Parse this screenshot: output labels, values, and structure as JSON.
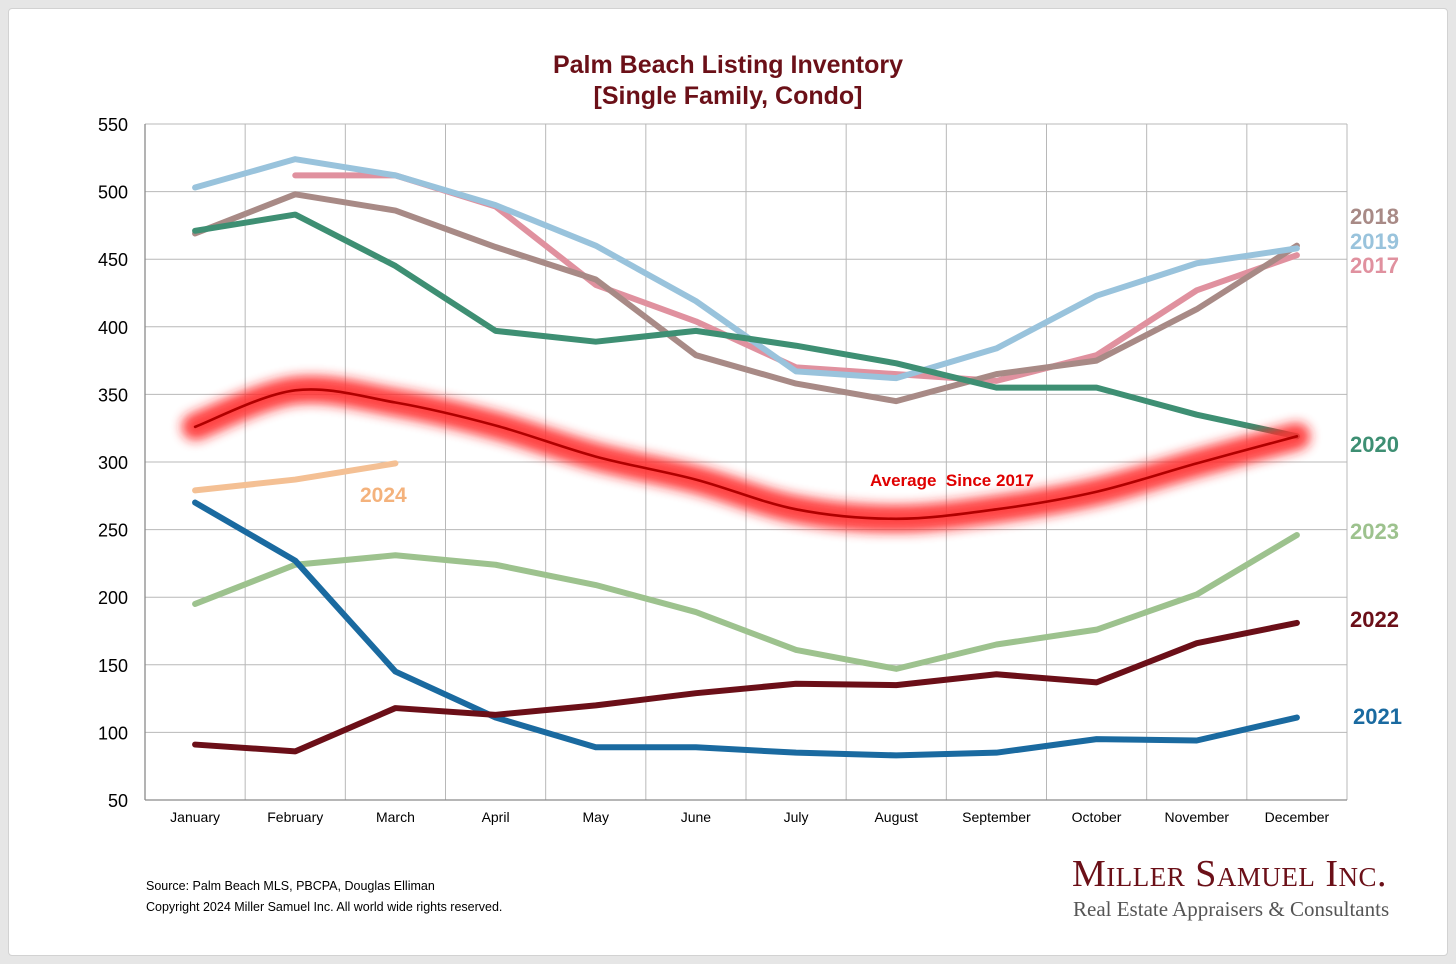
{
  "title_line1": "Palm Beach Listing Inventory",
  "title_line2": "[Single Family, Condo]",
  "source": "Source: Palm Beach MLS, PBCPA, Douglas Elliman",
  "copyright": "Copyright 2024 Miller Samuel Inc.  All world wide rights reserved.",
  "logo": {
    "name": "Miller Samuel Inc.",
    "tagline": "Real Estate Appraisers & Consultants"
  },
  "chart_data": {
    "type": "line",
    "title": "Palm Beach Listing Inventory [Single Family, Condo]",
    "categories": [
      "January",
      "February",
      "March",
      "April",
      "May",
      "June",
      "July",
      "August",
      "September",
      "October",
      "November",
      "December"
    ],
    "ylim": [
      50,
      550
    ],
    "yticks": [
      50,
      100,
      150,
      200,
      250,
      300,
      350,
      400,
      450,
      500,
      550
    ],
    "grid": true,
    "legend": "right",
    "series": [
      {
        "name": "2017",
        "color": "#e0919f",
        "label_color": "#e0919f",
        "values": [
          null,
          512,
          512,
          489,
          431,
          404,
          370,
          365,
          360,
          379,
          427,
          453
        ]
      },
      {
        "name": "2018",
        "color": "#a88a86",
        "label_color": "#a88a86",
        "values": [
          469,
          498,
          486,
          459,
          435,
          379,
          358,
          345,
          365,
          375,
          413,
          460
        ]
      },
      {
        "name": "2019",
        "color": "#99c3dc",
        "label_color": "#99c3dc",
        "values": [
          503,
          524,
          512,
          490,
          460,
          419,
          367,
          362,
          384,
          423,
          447,
          458
        ]
      },
      {
        "name": "2020",
        "color": "#3e8f73",
        "label_color": "#3e8f73",
        "values": [
          471,
          483,
          445,
          397,
          389,
          397,
          386,
          373,
          355,
          355,
          335,
          319
        ]
      },
      {
        "name": "2021",
        "color": "#1a6aa0",
        "label_color": "#1a6aa0",
        "values": [
          270,
          227,
          145,
          111,
          89,
          89,
          85,
          83,
          85,
          95,
          94,
          111
        ]
      },
      {
        "name": "2022",
        "color": "#6b0f18",
        "label_color": "#6b0f18",
        "values": [
          91,
          86,
          118,
          113,
          120,
          129,
          136,
          135,
          143,
          137,
          166,
          181
        ]
      },
      {
        "name": "2023",
        "color": "#9dc28e",
        "label_color": "#9dc28e",
        "values": [
          195,
          224,
          231,
          224,
          209,
          189,
          161,
          147,
          165,
          176,
          202,
          246
        ]
      },
      {
        "name": "2024",
        "color": "#f4c094",
        "label_color": "#f4b27c",
        "values": [
          279,
          287,
          299,
          null,
          null,
          null,
          null,
          null,
          null,
          null,
          null,
          null
        ]
      },
      {
        "name": "Average  Since 2017",
        "color": "#d40000",
        "label_color": "#e00000",
        "glow": true,
        "values": [
          326,
          353,
          344,
          327,
          304,
          287,
          265,
          258,
          265,
          278,
          299,
          319
        ]
      }
    ]
  }
}
